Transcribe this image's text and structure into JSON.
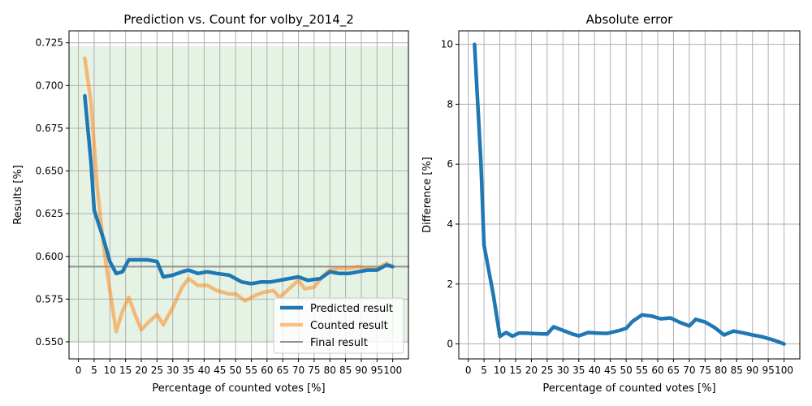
{
  "chart_data": [
    {
      "type": "line",
      "title": "Prediction vs. Count for volby_2014_2",
      "xlabel": "Percentage of counted votes [%]",
      "ylabel": "Results [%]",
      "xlim": [
        -3,
        105
      ],
      "ylim": [
        0.54,
        0.732
      ],
      "xticks": [
        0,
        5,
        10,
        15,
        20,
        25,
        30,
        35,
        40,
        45,
        50,
        55,
        60,
        65,
        70,
        75,
        80,
        85,
        90,
        95,
        100
      ],
      "yticks": [
        0.55,
        0.575,
        0.6,
        0.625,
        0.65,
        0.675,
        0.7,
        0.725
      ],
      "ytick_labels": [
        "0.550",
        "0.575",
        "0.600",
        "0.625",
        "0.650",
        "0.675",
        "0.700",
        "0.725"
      ],
      "grid": true,
      "legend_position": "lower-right",
      "band": {
        "y_min": 0.55,
        "y_max": 0.723,
        "color": "#2ca02c"
      },
      "series": [
        {
          "name": "Predicted result",
          "color": "#1f77b4",
          "x": [
            2,
            4,
            5,
            8,
            10,
            12,
            14,
            16,
            19,
            22,
            25,
            27,
            30,
            33,
            35,
            38,
            41,
            44,
            48,
            50,
            52,
            55,
            58,
            61,
            64,
            67,
            70,
            73,
            77,
            80,
            83,
            86,
            89,
            92,
            95,
            98,
            100
          ],
          "y": [
            0.694,
            0.655,
            0.627,
            0.61,
            0.597,
            0.59,
            0.591,
            0.598,
            0.598,
            0.598,
            0.597,
            0.588,
            0.589,
            0.591,
            0.592,
            0.59,
            0.591,
            0.59,
            0.589,
            0.587,
            0.585,
            0.584,
            0.585,
            0.585,
            0.586,
            0.587,
            0.588,
            0.586,
            0.587,
            0.591,
            0.59,
            0.59,
            0.591,
            0.592,
            0.592,
            0.595,
            0.594
          ]
        },
        {
          "name": "Counted result",
          "color": "#ff7f0e",
          "x": [
            2,
            4,
            6,
            8,
            10,
            12,
            14,
            16,
            18,
            20,
            22,
            25,
            27,
            30,
            33,
            35,
            38,
            41,
            44,
            48,
            50,
            53,
            56,
            59,
            62,
            64,
            67,
            70,
            72,
            75,
            78,
            80,
            83,
            86,
            89,
            92,
            95,
            98,
            100
          ],
          "y": [
            0.716,
            0.69,
            0.64,
            0.606,
            0.58,
            0.556,
            0.568,
            0.576,
            0.566,
            0.557,
            0.561,
            0.566,
            0.56,
            0.57,
            0.582,
            0.587,
            0.583,
            0.583,
            0.58,
            0.578,
            0.578,
            0.574,
            0.577,
            0.579,
            0.58,
            0.576,
            0.581,
            0.586,
            0.581,
            0.582,
            0.589,
            0.592,
            0.593,
            0.593,
            0.594,
            0.593,
            0.593,
            0.596,
            0.594
          ]
        },
        {
          "name": "Final result",
          "color": "#7f7f7f",
          "x": [
            -3,
            105
          ],
          "y": [
            0.594,
            0.594
          ]
        }
      ]
    },
    {
      "type": "line",
      "title": "Absolute error",
      "xlabel": "Percentage of counted votes [%]",
      "ylabel": "Difference [%]",
      "xlim": [
        -3,
        105
      ],
      "ylim": [
        -0.5,
        10.45
      ],
      "xticks": [
        0,
        5,
        10,
        15,
        20,
        25,
        30,
        35,
        40,
        45,
        50,
        55,
        60,
        65,
        70,
        75,
        80,
        85,
        90,
        95,
        100
      ],
      "yticks": [
        0,
        2,
        4,
        6,
        8,
        10
      ],
      "ytick_labels": [
        "0",
        "2",
        "4",
        "6",
        "8",
        "10"
      ],
      "grid": true,
      "series": [
        {
          "name": "",
          "color": "#1f77b4",
          "x": [
            2,
            4,
            5,
            8,
            10,
            12,
            14,
            16,
            18,
            20,
            22,
            25,
            27,
            30,
            33,
            35,
            38,
            41,
            44,
            48,
            50,
            52,
            55,
            58,
            61,
            64,
            67,
            70,
            72,
            75,
            78,
            81,
            84,
            87,
            90,
            93,
            96,
            98,
            100
          ],
          "y": [
            10.0,
            6.1,
            3.3,
            1.6,
            0.25,
            0.38,
            0.26,
            0.36,
            0.36,
            0.35,
            0.34,
            0.33,
            0.57,
            0.45,
            0.33,
            0.27,
            0.38,
            0.36,
            0.35,
            0.45,
            0.52,
            0.75,
            0.97,
            0.93,
            0.84,
            0.87,
            0.72,
            0.6,
            0.82,
            0.73,
            0.55,
            0.3,
            0.43,
            0.37,
            0.3,
            0.24,
            0.15,
            0.08,
            0.0
          ]
        }
      ]
    }
  ]
}
